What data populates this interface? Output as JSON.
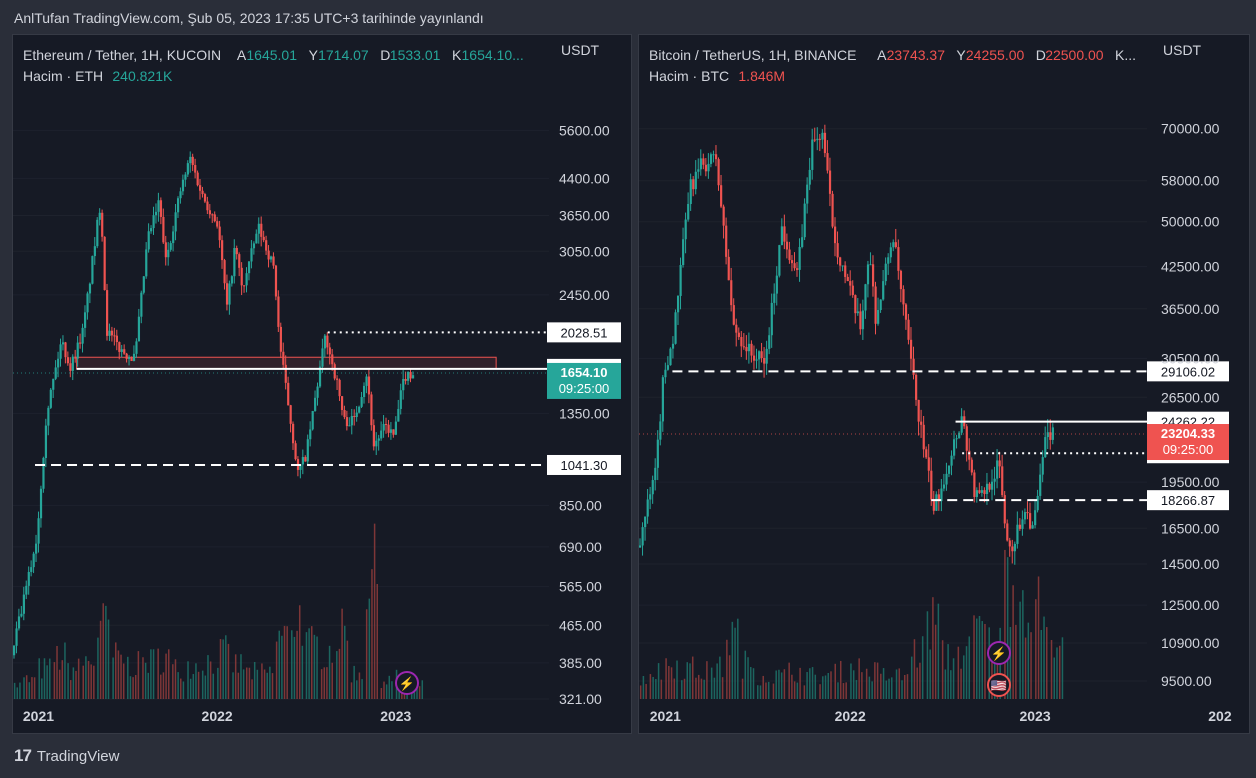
{
  "header": {
    "text": "AnlTufan TradingView.com, Şub 05, 2023 17:35 UTC+3 tarihinde yayınlandı"
  },
  "footer": {
    "logo": "17",
    "brand": "TradingView"
  },
  "colors": {
    "up": "#26a69a",
    "down": "#ef5350",
    "bg": "#161a25",
    "text": "#d1d4dc",
    "grid": "#1e222d"
  },
  "chart_data": [
    {
      "type": "candlestick",
      "symbol_title": "Ethereum / Tether, 1H, KUCOIN",
      "ohlc": [
        {
          "label": "A",
          "value": "1645.01"
        },
        {
          "label": "Y",
          "value": "1714.07"
        },
        {
          "label": "D",
          "value": "1533.01"
        },
        {
          "label": "K",
          "value": "1654.10..."
        }
      ],
      "ohlc_color": "#26a69a",
      "volume_label": "Hacim · ETH",
      "volume_value": "240.821K",
      "currency": "USDT",
      "scale": "log",
      "ylim": [
        321,
        7400
      ],
      "yticks": [
        "5600.00",
        "4400.00",
        "3650.00",
        "3050.00",
        "2450.00",
        "1350.00",
        "850.00",
        "690.00",
        "565.00",
        "465.00",
        "385.00",
        "321.00"
      ],
      "xticks": [
        "2021",
        "2022",
        "2023"
      ],
      "x_range": [
        "2020-11-10",
        "2023-11-10"
      ],
      "last_price": {
        "value": "1654.10",
        "countdown": "09:25:00",
        "color": "#26a69a"
      },
      "levels": [
        {
          "value": 2028.51,
          "label": "2028.51",
          "style": "dotted",
          "from": "2022-08-15"
        },
        {
          "value": 1688.23,
          "label": "1688.23",
          "style": "solid",
          "from": "2021-03-20"
        },
        {
          "value": 1041.3,
          "label": "1041.30",
          "style": "dashed",
          "from": "2020-12-25"
        }
      ],
      "zone": {
        "from": "2021-03-20",
        "to": "2023-07-25",
        "low": 1688,
        "high": 1790
      },
      "price_path": [
        [
          "2020-11-10",
          400
        ],
        [
          "2020-12-10",
          560
        ],
        [
          "2021-01-01",
          730
        ],
        [
          "2021-01-20",
          1350
        ],
        [
          "2021-02-20",
          1950
        ],
        [
          "2021-03-10",
          1700
        ],
        [
          "2021-04-05",
          2050
        ],
        [
          "2021-05-11",
          3950
        ],
        [
          "2021-05-23",
          2050
        ],
        [
          "2021-06-22",
          1850
        ],
        [
          "2021-07-20",
          1780
        ],
        [
          "2021-08-15",
          3250
        ],
        [
          "2021-09-07",
          3900
        ],
        [
          "2021-09-21",
          2900
        ],
        [
          "2021-10-20",
          4100
        ],
        [
          "2021-11-10",
          4870
        ],
        [
          "2021-12-04",
          4050
        ],
        [
          "2022-01-05",
          3500
        ],
        [
          "2022-01-24",
          2300
        ],
        [
          "2022-02-10",
          3150
        ],
        [
          "2022-02-24",
          2500
        ],
        [
          "2022-03-29",
          3450
        ],
        [
          "2022-04-30",
          2800
        ],
        [
          "2022-05-12",
          1900
        ],
        [
          "2022-06-18",
          1000
        ],
        [
          "2022-07-05",
          1100
        ],
        [
          "2022-08-13",
          2000
        ],
        [
          "2022-09-07",
          1550
        ],
        [
          "2022-09-20",
          1300
        ],
        [
          "2022-10-10",
          1300
        ],
        [
          "2022-11-05",
          1650
        ],
        [
          "2022-11-20",
          1150
        ],
        [
          "2022-12-15",
          1270
        ],
        [
          "2022-12-31",
          1200
        ],
        [
          "2023-01-12",
          1440
        ],
        [
          "2023-01-22",
          1630
        ],
        [
          "2023-02-05",
          1654
        ]
      ],
      "volume": [
        [
          "2020-11",
          18
        ],
        [
          "2020-12",
          25
        ],
        [
          "2021-01",
          40
        ],
        [
          "2021-02",
          55
        ],
        [
          "2021-03",
          40
        ],
        [
          "2021-04",
          50
        ],
        [
          "2021-05",
          95
        ],
        [
          "2021-06",
          55
        ],
        [
          "2021-07",
          45
        ],
        [
          "2021-08",
          50
        ],
        [
          "2021-09",
          55
        ],
        [
          "2021-10",
          40
        ],
        [
          "2021-11",
          45
        ],
        [
          "2021-12",
          50
        ],
        [
          "2022-01",
          60
        ],
        [
          "2022-02",
          45
        ],
        [
          "2022-03",
          35
        ],
        [
          "2022-04",
          35
        ],
        [
          "2022-05",
          80
        ],
        [
          "2022-06",
          110
        ],
        [
          "2022-07",
          70
        ],
        [
          "2022-08",
          65
        ],
        [
          "2022-09",
          85
        ],
        [
          "2022-10",
          35
        ],
        [
          "2022-11",
          165
        ],
        [
          "2022-12",
          25
        ],
        [
          "2023-01",
          28
        ],
        [
          "2023-02",
          18
        ]
      ],
      "annotations": [
        "⚡"
      ]
    },
    {
      "type": "candlestick",
      "symbol_title": "Bitcoin / TetherUS, 1H, BINANCE",
      "ohlc": [
        {
          "label": "A",
          "value": "23743.37"
        },
        {
          "label": "Y",
          "value": "24255.00"
        },
        {
          "label": "D",
          "value": "22500.00"
        },
        {
          "label": "K...",
          "value": ""
        }
      ],
      "ohlc_color": "#ef5350",
      "volume_label": "Hacim · BTC",
      "volume_value": "1.846M",
      "currency": "USDT",
      "scale": "log",
      "ylim": [
        8900,
        85000
      ],
      "yticks": [
        "70000.00",
        "58000.00",
        "50000.00",
        "42500.00",
        "36500.00",
        "30500.00",
        "26500.00",
        "19500.00",
        "16500.00",
        "14500.00",
        "12500.00",
        "10900.00",
        "9500.00"
      ],
      "xticks": [
        "2021",
        "2022",
        "2023",
        "202"
      ],
      "x_range": [
        "2020-11-10",
        "2023-08-10"
      ],
      "last_price": {
        "value": "23204.33",
        "countdown": "09:25:00",
        "color": "#ef5350"
      },
      "levels": [
        {
          "value": 29106.02,
          "label": "29106.02",
          "style": "dashed",
          "from": "2021-01-15"
        },
        {
          "value": 24262.22,
          "label": "24262.22",
          "style": "solid",
          "from": "2022-07-28"
        },
        {
          "value": 21646.83,
          "label": "21646.83",
          "style": "dotted",
          "from": "2022-08-10"
        },
        {
          "value": 18266.87,
          "label": "18266.87",
          "style": "dashed",
          "from": "2022-06-10"
        }
      ],
      "price_path": [
        [
          "2020-11-10",
          15400
        ],
        [
          "2020-12-15",
          20000
        ],
        [
          "2021-01-01",
          29000
        ],
        [
          "2021-01-20",
          33000
        ],
        [
          "2021-02-20",
          56000
        ],
        [
          "2021-03-13",
          61000
        ],
        [
          "2021-04-14",
          63000
        ],
        [
          "2021-05-19",
          34000
        ],
        [
          "2021-06-22",
          31000
        ],
        [
          "2021-07-20",
          30000
        ],
        [
          "2021-08-22",
          49000
        ],
        [
          "2021-09-21",
          41000
        ],
        [
          "2021-10-20",
          66000
        ],
        [
          "2021-11-10",
          68900
        ],
        [
          "2021-12-04",
          47000
        ],
        [
          "2022-01-24",
          34000
        ],
        [
          "2022-02-10",
          45000
        ],
        [
          "2022-02-24",
          35000
        ],
        [
          "2022-03-29",
          48000
        ],
        [
          "2022-05-12",
          27000
        ],
        [
          "2022-06-18",
          17600
        ],
        [
          "2022-07-05",
          19500
        ],
        [
          "2022-08-13",
          24800
        ],
        [
          "2022-09-07",
          18600
        ],
        [
          "2022-09-20",
          18500
        ],
        [
          "2022-10-25",
          20800
        ],
        [
          "2022-11-09",
          15800
        ],
        [
          "2022-11-21",
          15500
        ],
        [
          "2022-12-15",
          17800
        ],
        [
          "2022-12-31",
          16500
        ],
        [
          "2023-01-12",
          19000
        ],
        [
          "2023-01-25",
          23000
        ],
        [
          "2023-02-05",
          23204
        ]
      ],
      "volume": [
        [
          "2020-11",
          28
        ],
        [
          "2020-12",
          35
        ],
        [
          "2021-01",
          45
        ],
        [
          "2021-02",
          40
        ],
        [
          "2021-03",
          35
        ],
        [
          "2021-04",
          40
        ],
        [
          "2021-05",
          80
        ],
        [
          "2021-06",
          45
        ],
        [
          "2021-07",
          30
        ],
        [
          "2021-08",
          30
        ],
        [
          "2021-09",
          35
        ],
        [
          "2021-10",
          30
        ],
        [
          "2021-11",
          30
        ],
        [
          "2021-12",
          35
        ],
        [
          "2022-01",
          40
        ],
        [
          "2022-02",
          35
        ],
        [
          "2022-03",
          30
        ],
        [
          "2022-04",
          30
        ],
        [
          "2022-05",
          60
        ],
        [
          "2022-06",
          100
        ],
        [
          "2022-07",
          55
        ],
        [
          "2022-08",
          60
        ],
        [
          "2022-09",
          90
        ],
        [
          "2022-10",
          70
        ],
        [
          "2022-11",
          160
        ],
        [
          "2022-12",
          130
        ],
        [
          "2023-01",
          115
        ],
        [
          "2023-02",
          60
        ]
      ],
      "annotations": [
        "⚡",
        "🇺🇸"
      ]
    }
  ]
}
